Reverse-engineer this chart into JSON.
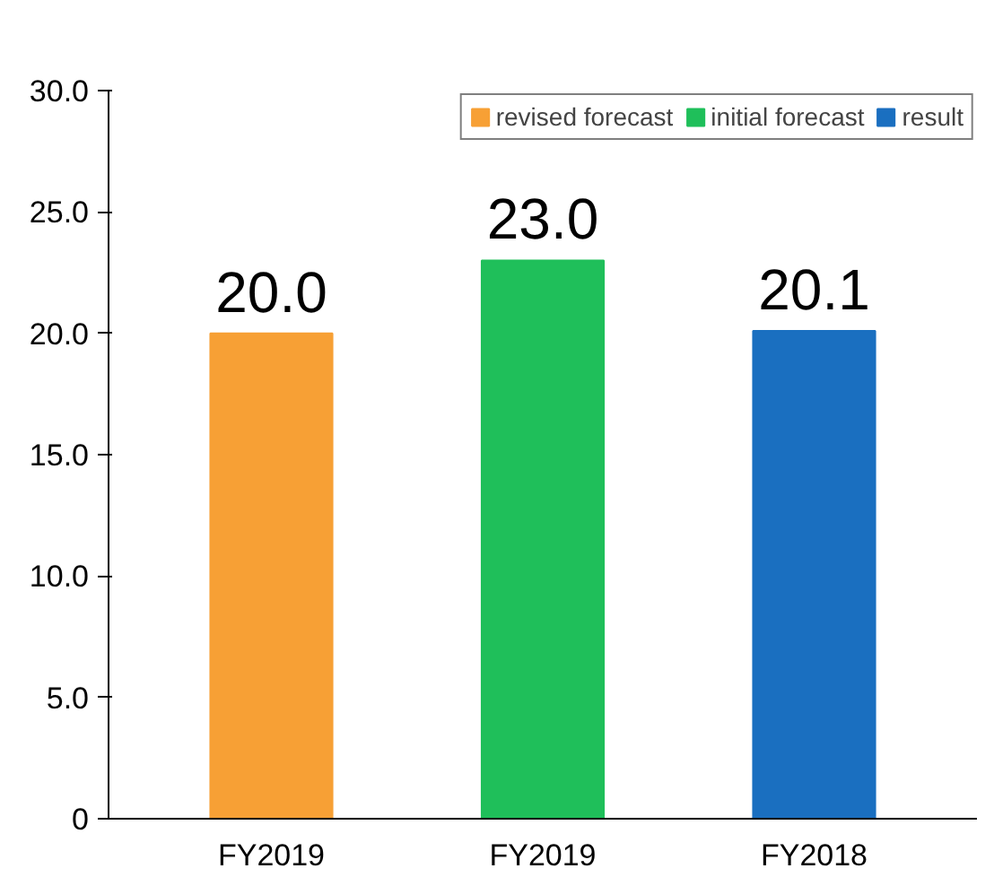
{
  "chart_data": {
    "type": "bar",
    "categories": [
      "FY2019",
      "FY2019",
      "FY2018"
    ],
    "series": [
      {
        "name": "revised forecast",
        "color": "#f7a035",
        "values": [
          20.0,
          null,
          null
        ],
        "value_labels": [
          "20.0",
          null,
          null
        ]
      },
      {
        "name": "initial forecast",
        "color": "#1fbf5a",
        "values": [
          null,
          23.0,
          null
        ],
        "value_labels": [
          null,
          "23.0",
          null
        ]
      },
      {
        "name": "result",
        "color": "#1a6fc0",
        "values": [
          null,
          null,
          20.1
        ],
        "value_labels": [
          null,
          null,
          "20.1"
        ]
      }
    ],
    "ylim": [
      0,
      30
    ],
    "yticks": [
      {
        "value": 0,
        "label": "0"
      },
      {
        "value": 5,
        "label": "5.0"
      },
      {
        "value": 10,
        "label": "10.0"
      },
      {
        "value": 15,
        "label": "15.0"
      },
      {
        "value": 20,
        "label": "20.0"
      },
      {
        "value": 25,
        "label": "25.0"
      },
      {
        "value": 30,
        "label": "30.0"
      }
    ],
    "legend": "top right"
  }
}
